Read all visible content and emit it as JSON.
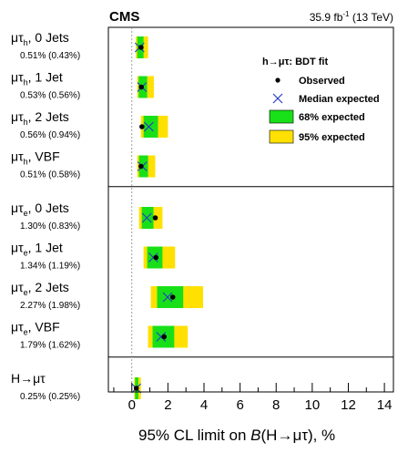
{
  "header": {
    "experiment": "CMS",
    "luminosity": "35.9 fb",
    "lumi_sup": "-1",
    "energy": "(13 TeV)"
  },
  "chart_data": {
    "type": "limit-plot",
    "x_axis": {
      "label_prefix": "95% CL limit on ",
      "label_italic": "B",
      "label_suffix": "(H→μτ), %",
      "range": [
        -1.3,
        14.5
      ],
      "ticks": [
        0,
        2,
        4,
        6,
        8,
        10,
        12,
        14
      ],
      "reference_line": 0
    },
    "legend": {
      "title": "h→μτ: BDT fit",
      "entries": [
        {
          "kind": "observed",
          "label": "Observed",
          "color": "#000000"
        },
        {
          "kind": "median",
          "label": "Median expected",
          "color": "#2a3fc8"
        },
        {
          "kind": "band68",
          "label": "68% expected",
          "color": "#18e018"
        },
        {
          "kind": "band95",
          "label": "95% expected",
          "color": "#ffe000"
        }
      ],
      "placement": "top-right"
    },
    "groups": [
      {
        "name": "mu_tau_h",
        "channels": [
          {
            "particle": "μτ",
            "sub": "h",
            "category": "0 Jets",
            "summary": "0.51% (0.43%)",
            "observed": 0.51,
            "expected": 0.43,
            "band68": [
              0.3,
              0.65
            ],
            "band95": [
              0.22,
              0.9
            ]
          },
          {
            "particle": "μτ",
            "sub": "h",
            "category": "1 Jet",
            "summary": "0.53% (0.56%)",
            "observed": 0.53,
            "expected": 0.56,
            "band68": [
              0.38,
              0.85
            ],
            "band95": [
              0.3,
              1.22
            ]
          },
          {
            "particle": "μτ",
            "sub": "h",
            "category": "2 Jets",
            "summary": "0.56% (0.94%)",
            "observed": 0.56,
            "expected": 0.94,
            "band68": [
              0.65,
              1.45
            ],
            "band95": [
              0.5,
              2.0
            ]
          },
          {
            "particle": "μτ",
            "sub": "h",
            "category": "VBF",
            "summary": "0.51% (0.58%)",
            "observed": 0.51,
            "expected": 0.58,
            "band68": [
              0.4,
              0.9
            ],
            "band95": [
              0.3,
              1.3
            ]
          }
        ]
      },
      {
        "name": "mu_tau_e",
        "channels": [
          {
            "particle": "μτ",
            "sub": "e",
            "category": "0 Jets",
            "summary": "1.30% (0.83%)",
            "observed": 1.3,
            "expected": 0.83,
            "band68": [
              0.55,
              1.2
            ],
            "band95": [
              0.4,
              1.7
            ]
          },
          {
            "particle": "μτ",
            "sub": "e",
            "category": "1 Jet",
            "summary": "1.34% (1.19%)",
            "observed": 1.34,
            "expected": 1.19,
            "band68": [
              0.85,
              1.7
            ],
            "band95": [
              0.65,
              2.4
            ]
          },
          {
            "particle": "μτ",
            "sub": "e",
            "category": "2 Jets",
            "summary": "2.27% (1.98%)",
            "observed": 2.27,
            "expected": 1.98,
            "band68": [
              1.4,
              2.85
            ],
            "band95": [
              1.05,
              3.95
            ]
          },
          {
            "particle": "μτ",
            "sub": "e",
            "category": "VBF",
            "summary": "1.79% (1.62%)",
            "observed": 1.79,
            "expected": 1.62,
            "band68": [
              1.15,
              2.35
            ],
            "band95": [
              0.9,
              3.1
            ]
          }
        ]
      },
      {
        "name": "combined",
        "channels": [
          {
            "particle": "H→μτ",
            "sub": "",
            "category": "",
            "summary": "0.25% (0.25%)",
            "observed": 0.25,
            "expected": 0.25,
            "band68": [
              0.18,
              0.36
            ],
            "band95": [
              0.13,
              0.5
            ]
          }
        ]
      }
    ]
  }
}
